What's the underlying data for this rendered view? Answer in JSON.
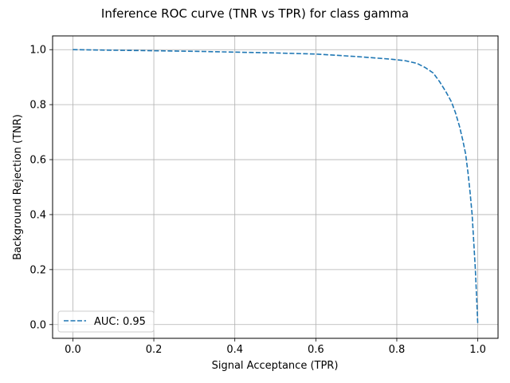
{
  "chart_data": {
    "type": "line",
    "title": "Inference ROC curve (TNR vs TPR) for class gamma",
    "xlabel": "Signal Acceptance (TPR)",
    "ylabel": "Background Rejection (TNR)",
    "xlim": [
      -0.05,
      1.05
    ],
    "ylim": [
      -0.05,
      1.05
    ],
    "xticks": [
      0.0,
      0.2,
      0.4,
      0.6,
      0.8,
      1.0
    ],
    "yticks": [
      0.0,
      0.2,
      0.4,
      0.6,
      0.8,
      1.0
    ],
    "xtick_labels": [
      "0.0",
      "0.2",
      "0.4",
      "0.6",
      "0.8",
      "1.0"
    ],
    "ytick_labels": [
      "0.0",
      "0.2",
      "0.4",
      "0.6",
      "0.8",
      "1.0"
    ],
    "grid": true,
    "legend": {
      "placement": "lower-left"
    },
    "series": [
      {
        "name": "AUC: 0.95",
        "color": "#1f77b4",
        "style": "dashed",
        "points": [
          [
            0.0,
            1.0
          ],
          [
            0.1,
            0.998
          ],
          [
            0.2,
            0.996
          ],
          [
            0.3,
            0.994
          ],
          [
            0.4,
            0.991
          ],
          [
            0.5,
            0.988
          ],
          [
            0.6,
            0.984
          ],
          [
            0.7,
            0.975
          ],
          [
            0.78,
            0.966
          ],
          [
            0.82,
            0.96
          ],
          [
            0.85,
            0.95
          ],
          [
            0.87,
            0.935
          ],
          [
            0.89,
            0.915
          ],
          [
            0.905,
            0.885
          ],
          [
            0.92,
            0.85
          ],
          [
            0.935,
            0.81
          ],
          [
            0.945,
            0.77
          ],
          [
            0.955,
            0.72
          ],
          [
            0.963,
            0.67
          ],
          [
            0.97,
            0.62
          ],
          [
            0.976,
            0.55
          ],
          [
            0.981,
            0.48
          ],
          [
            0.986,
            0.4
          ],
          [
            0.99,
            0.3
          ],
          [
            0.994,
            0.2
          ],
          [
            0.997,
            0.1
          ],
          [
            1.0,
            0.0
          ]
        ]
      }
    ]
  }
}
